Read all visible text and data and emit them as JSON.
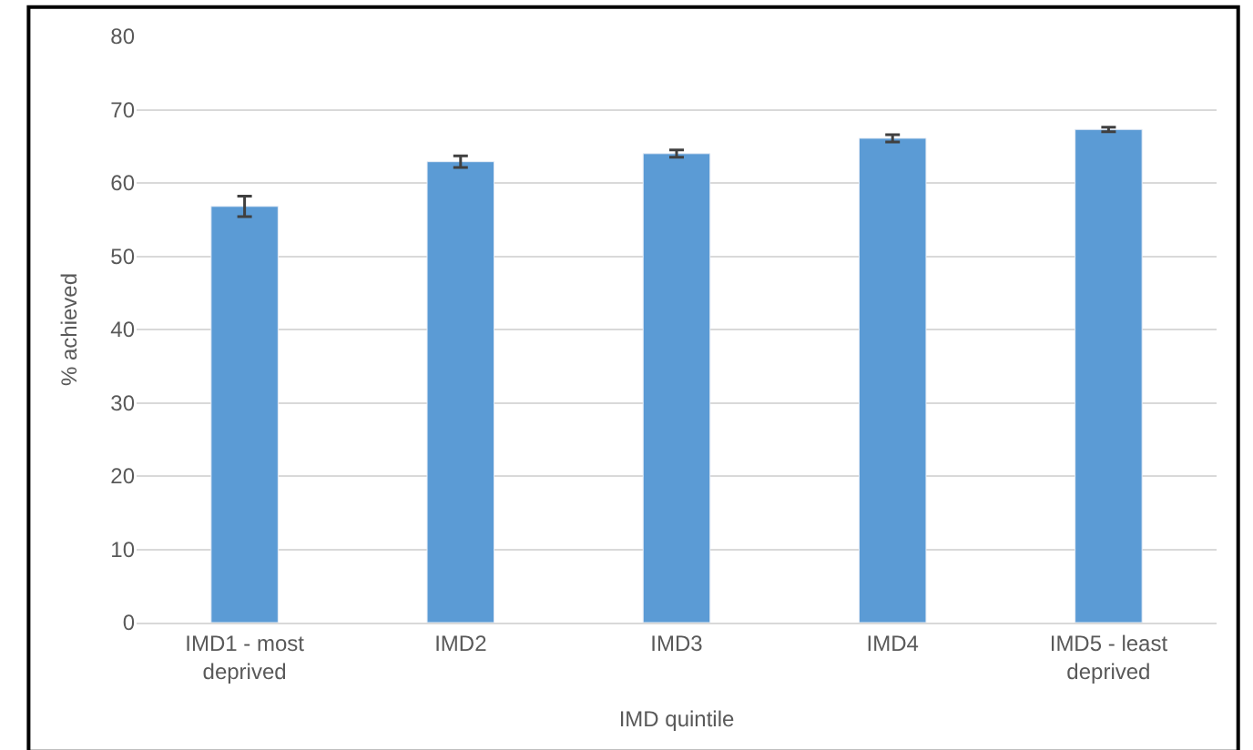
{
  "chart_data": {
    "type": "bar",
    "xlabel": "IMD quintile",
    "ylabel": "% achieved",
    "categories": [
      "IMD1 - most deprived",
      "IMD2",
      "IMD3",
      "IMD4",
      "IMD5 - least deprived"
    ],
    "values": [
      56.8,
      62.9,
      64.0,
      66.1,
      67.3
    ],
    "errors": [
      1.4,
      0.8,
      0.5,
      0.5,
      0.3
    ],
    "color": "#5b9bd5",
    "ylim": [
      0,
      80
    ],
    "yticks": [
      0,
      10,
      20,
      30,
      40,
      50,
      60,
      70,
      80
    ],
    "grid": "y"
  }
}
